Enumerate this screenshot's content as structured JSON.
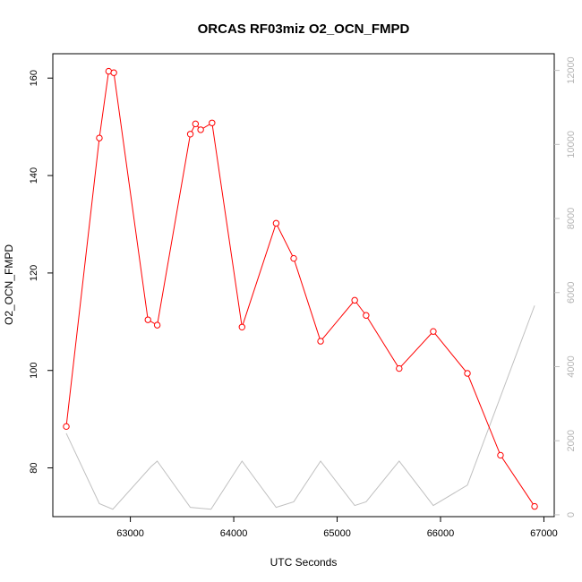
{
  "chart_data": {
    "type": "line",
    "title": "ORCAS RF03miz O2_OCN_FMPD",
    "xlabel": "UTC Seconds",
    "ylabel": "O2_OCN_FMPD",
    "xlim": [
      62250,
      67100
    ],
    "ylim": [
      70,
      165
    ],
    "y2lim": [
      -50,
      12450
    ],
    "x_ticks": [
      63000,
      64000,
      65000,
      66000,
      67000
    ],
    "y_ticks": [
      80,
      100,
      120,
      140,
      160
    ],
    "y2_ticks": [
      0,
      2000,
      4000,
      6000,
      8000,
      10000,
      12000
    ],
    "grid": false,
    "colors": {
      "primary": "#ff0000",
      "secondary": "#c0c0c0"
    },
    "series": [
      {
        "axis": "left",
        "marker": "open-circle",
        "x": [
          62380,
          62700,
          62790,
          62840,
          63170,
          63260,
          63580,
          63630,
          63680,
          63790,
          64080,
          64410,
          64580,
          64840,
          65170,
          65280,
          65600,
          65930,
          66260,
          66580,
          66910
        ],
        "values": [
          88.5,
          147.7,
          161.4,
          161.1,
          110.4,
          109.3,
          148.5,
          150.6,
          149.4,
          150.8,
          108.9,
          130.2,
          123.0,
          106.0,
          114.4,
          111.3,
          100.4,
          108.0,
          99.4,
          82.6,
          72.1
        ]
      },
      {
        "axis": "right",
        "marker": "none",
        "x": [
          62380,
          62700,
          62830,
          63200,
          63260,
          63580,
          63780,
          64080,
          64410,
          64580,
          64840,
          65170,
          65280,
          65600,
          65930,
          66260,
          66910
        ],
        "values": [
          2200,
          300,
          150,
          1300,
          1450,
          200,
          150,
          1450,
          200,
          350,
          1450,
          250,
          350,
          1450,
          250,
          800,
          5650
        ]
      }
    ]
  }
}
